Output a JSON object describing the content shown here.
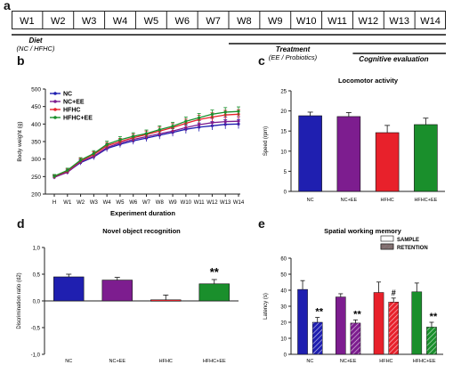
{
  "panel_labels": {
    "a": "a",
    "b": "b",
    "c": "c",
    "d": "d",
    "e": "e"
  },
  "timeline": {
    "weeks": [
      "W1",
      "W2",
      "W3",
      "W4",
      "W5",
      "W6",
      "W7",
      "W8",
      "W9",
      "W10",
      "W11",
      "W12",
      "W13",
      "W14"
    ],
    "phases": [
      {
        "name": "Diet",
        "sub": "(NC / HFHC)",
        "start_week": 1,
        "end_week": 14
      },
      {
        "name": "Treatment",
        "sub": "(EE / Probiotics)",
        "start_week": 8,
        "end_week": 14
      },
      {
        "name": "Cognitive evaluation",
        "sub": "",
        "start_week": 12,
        "end_week": 14
      }
    ]
  },
  "colors": {
    "NC": "#1f1fb0",
    "NC+EE": "#7d1d8f",
    "HFHC": "#e8212b",
    "HFHC+EE": "#1a8f2c"
  },
  "chart_data": [
    {
      "id": "b",
      "type": "line",
      "title": "",
      "xlabel": "Experiment duration",
      "ylabel": "Body weight (g)",
      "x": [
        "H",
        "W1",
        "W2",
        "W3",
        "W4",
        "W5",
        "W6",
        "W7",
        "W8",
        "W9",
        "W10",
        "W11",
        "W12",
        "W13",
        "W14"
      ],
      "ylim": [
        200,
        500
      ],
      "yticks": [
        200,
        250,
        300,
        350,
        400,
        450,
        500
      ],
      "legend": "top-left",
      "series": [
        {
          "name": "NC",
          "values": [
            248,
            263,
            290,
            306,
            330,
            342,
            352,
            360,
            368,
            376,
            385,
            391,
            395,
            399,
            400
          ],
          "err": [
            5,
            6,
            7,
            8,
            9,
            9,
            10,
            10,
            11,
            11,
            12,
            12,
            12,
            13,
            13
          ]
        },
        {
          "name": "NC+EE",
          "values": [
            248,
            262,
            292,
            308,
            333,
            346,
            356,
            364,
            372,
            380,
            390,
            398,
            404,
            407,
            408
          ],
          "err": [
            5,
            6,
            7,
            8,
            9,
            9,
            10,
            10,
            11,
            11,
            12,
            12,
            12,
            13,
            13
          ]
        },
        {
          "name": "HFHC",
          "values": [
            250,
            266,
            295,
            313,
            338,
            350,
            361,
            370,
            380,
            390,
            402,
            413,
            420,
            426,
            428
          ],
          "err": [
            5,
            6,
            7,
            8,
            9,
            9,
            10,
            10,
            11,
            11,
            12,
            12,
            12,
            13,
            13
          ]
        },
        {
          "name": "HFHC+EE",
          "values": [
            251,
            268,
            297,
            316,
            342,
            355,
            365,
            373,
            384,
            394,
            408,
            418,
            428,
            434,
            436
          ],
          "err": [
            5,
            6,
            7,
            8,
            9,
            9,
            10,
            10,
            11,
            11,
            12,
            12,
            12,
            13,
            13
          ]
        }
      ]
    },
    {
      "id": "c",
      "type": "bar",
      "title": "Locomotor activity",
      "xlabel": "",
      "ylabel": "Speed (rpm)",
      "categories": [
        "NC",
        "NC+EE",
        "HFHC",
        "HFHC+EE"
      ],
      "values": [
        18.8,
        18.6,
        14.6,
        16.6
      ],
      "err": [
        0.9,
        1.0,
        1.8,
        1.6
      ],
      "ylim": [
        0,
        25
      ],
      "yticks": [
        0,
        5,
        10,
        15,
        20,
        25
      ]
    },
    {
      "id": "d",
      "type": "bar",
      "title": "Novel object recognition",
      "xlabel": "",
      "ylabel": "Discrimination ratio (d2)",
      "categories": [
        "NC",
        "NC+EE",
        "HFHC",
        "HFHC+EE"
      ],
      "values": [
        0.45,
        0.39,
        0.02,
        0.32
      ],
      "err": [
        0.05,
        0.05,
        0.09,
        0.08
      ],
      "ylim": [
        -1.0,
        1.0
      ],
      "yticks": [
        -1.0,
        -0.5,
        0.0,
        0.5,
        1.0
      ],
      "ytick_labels": [
        "-1,0",
        "-0,5",
        "0,0",
        "0,5",
        "1,0"
      ],
      "annotations": [
        {
          "category": "HFHC+EE",
          "text": "**"
        }
      ]
    },
    {
      "id": "e",
      "type": "bar",
      "title": "Spatial working memory",
      "xlabel": "",
      "ylabel": "Latency (s)",
      "categories": [
        "NC",
        "NC+EE",
        "HFHC",
        "HFHC+EE"
      ],
      "legend": "top-right",
      "ylim": [
        0,
        60
      ],
      "yticks": [
        0,
        10,
        20,
        30,
        40,
        50,
        60
      ],
      "series": [
        {
          "name": "SAMPLE",
          "values": [
            40.5,
            35.8,
            38.6,
            39.0
          ],
          "err": [
            5.5,
            2.0,
            6.5,
            5.5
          ],
          "marks": [
            "",
            "",
            "",
            ""
          ]
        },
        {
          "name": "RETENTION",
          "values": [
            20.0,
            19.5,
            32.6,
            17.0
          ],
          "err": [
            3.0,
            2.0,
            2.5,
            3.0
          ],
          "marks": [
            "**",
            "**",
            "#",
            "**"
          ]
        }
      ]
    }
  ]
}
